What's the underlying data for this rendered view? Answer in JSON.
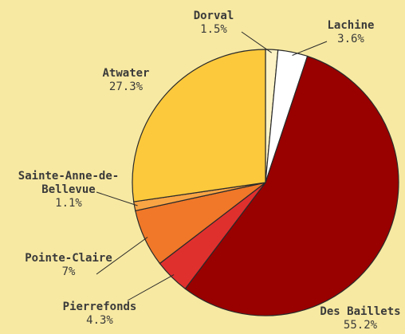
{
  "chart_data": {
    "type": "pie",
    "categories": [
      "Dorval",
      "Lachine",
      "Des Baillets",
      "Pierrefonds",
      "Pointe-Claire",
      "Sainte-Anne-de-Bellevue",
      "Atwater"
    ],
    "values": [
      1.5,
      3.6,
      55.2,
      4.3,
      7,
      1.1,
      27.3
    ],
    "value_labels": [
      "1.5%",
      "3.6%",
      "55.2%",
      "4.3%",
      "7%",
      "1.1%",
      "27.3%"
    ],
    "colors": [
      "#fdf3c4",
      "#ffffff",
      "#990000",
      "#e0302e",
      "#f07828",
      "#f9a444",
      "#fcc93c"
    ]
  }
}
